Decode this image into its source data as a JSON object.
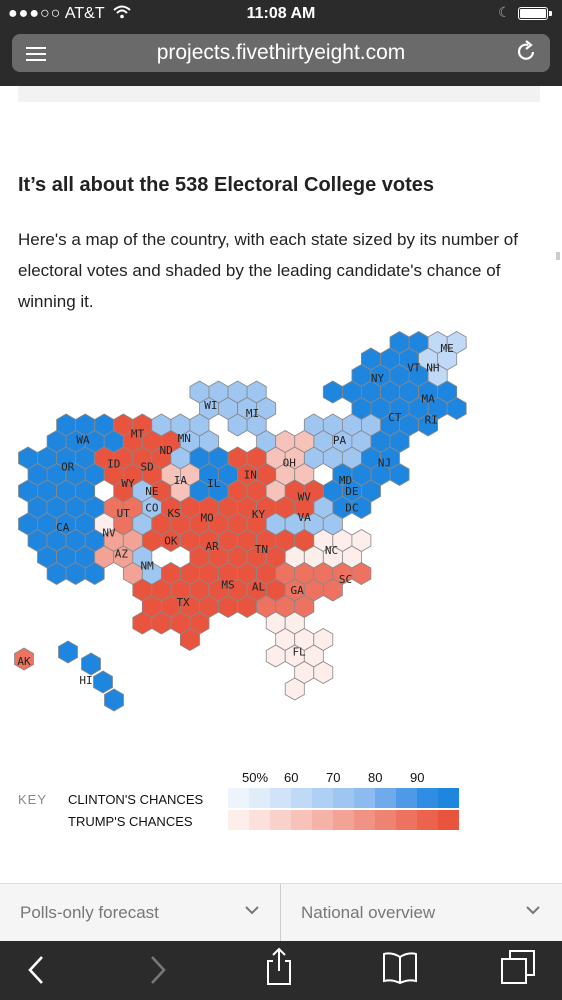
{
  "status_bar": {
    "carrier": "AT&T",
    "signal_dots": "●●●○○",
    "time": "11:08 AM"
  },
  "browser": {
    "url": "projects.fivethirtyeight.com"
  },
  "article": {
    "heading": "It’s all about the 538 Electoral College votes",
    "intro": "Here's a map of the country, with each state sized by its number of electoral votes and shaded by the leading candidate's chance of winning it."
  },
  "map": {
    "states": [
      {
        "abbr": "ME",
        "leader": "clinton",
        "chance_band": "60"
      },
      {
        "abbr": "VT",
        "leader": "clinton",
        "chance_band": "90"
      },
      {
        "abbr": "NH",
        "leader": "clinton",
        "chance_band": "60"
      },
      {
        "abbr": "NY",
        "leader": "clinton",
        "chance_band": "90"
      },
      {
        "abbr": "MA",
        "leader": "clinton",
        "chance_band": "90"
      },
      {
        "abbr": "CT",
        "leader": "clinton",
        "chance_band": "90"
      },
      {
        "abbr": "RI",
        "leader": "clinton",
        "chance_band": "90"
      },
      {
        "abbr": "PA",
        "leader": "clinton",
        "chance_band": "70"
      },
      {
        "abbr": "NJ",
        "leader": "clinton",
        "chance_band": "90"
      },
      {
        "abbr": "MD",
        "leader": "clinton",
        "chance_band": "90"
      },
      {
        "abbr": "DE",
        "leader": "clinton",
        "chance_band": "90"
      },
      {
        "abbr": "DC",
        "leader": "clinton",
        "chance_band": "90"
      },
      {
        "abbr": "VA",
        "leader": "clinton",
        "chance_band": "70"
      },
      {
        "abbr": "WA",
        "leader": "clinton",
        "chance_band": "90"
      },
      {
        "abbr": "OR",
        "leader": "clinton",
        "chance_band": "90"
      },
      {
        "abbr": "CA",
        "leader": "clinton",
        "chance_band": "90"
      },
      {
        "abbr": "MT",
        "leader": "trump",
        "chance_band": "90"
      },
      {
        "abbr": "ND",
        "leader": "trump",
        "chance_band": "90"
      },
      {
        "abbr": "ID",
        "leader": "trump",
        "chance_band": "90"
      },
      {
        "abbr": "SD",
        "leader": "trump",
        "chance_band": "90"
      },
      {
        "abbr": "WY",
        "leader": "trump",
        "chance_band": "90"
      },
      {
        "abbr": "NE",
        "leader": "trump",
        "chance_band": "90"
      },
      {
        "abbr": "MN",
        "leader": "clinton",
        "chance_band": "70"
      },
      {
        "abbr": "WI",
        "leader": "clinton",
        "chance_band": "70"
      },
      {
        "abbr": "MI",
        "leader": "clinton",
        "chance_band": "70"
      },
      {
        "abbr": "IA",
        "leader": "trump",
        "chance_band": "60"
      },
      {
        "abbr": "IL",
        "leader": "clinton",
        "chance_band": "90"
      },
      {
        "abbr": "IN",
        "leader": "trump",
        "chance_band": "90"
      },
      {
        "abbr": "OH",
        "leader": "trump",
        "chance_band": "60"
      },
      {
        "abbr": "WV",
        "leader": "trump",
        "chance_band": "90"
      },
      {
        "abbr": "UT",
        "leader": "trump",
        "chance_band": "80"
      },
      {
        "abbr": "NV",
        "leader": "trump",
        "chance_band": "50"
      },
      {
        "abbr": "CO",
        "leader": "clinton",
        "chance_band": "70"
      },
      {
        "abbr": "KS",
        "leader": "trump",
        "chance_band": "90"
      },
      {
        "abbr": "MO",
        "leader": "trump",
        "chance_band": "90"
      },
      {
        "abbr": "KY",
        "leader": "trump",
        "chance_band": "90"
      },
      {
        "abbr": "OK",
        "leader": "trump",
        "chance_band": "90"
      },
      {
        "abbr": "AZ",
        "leader": "trump",
        "chance_band": "70"
      },
      {
        "abbr": "NM",
        "leader": "clinton",
        "chance_band": "70"
      },
      {
        "abbr": "AR",
        "leader": "trump",
        "chance_band": "90"
      },
      {
        "abbr": "TN",
        "leader": "trump",
        "chance_band": "90"
      },
      {
        "abbr": "NC",
        "leader": "trump",
        "chance_band": "50"
      },
      {
        "abbr": "TX",
        "leader": "trump",
        "chance_band": "90"
      },
      {
        "abbr": "MS",
        "leader": "trump",
        "chance_band": "90"
      },
      {
        "abbr": "AL",
        "leader": "trump",
        "chance_band": "90"
      },
      {
        "abbr": "GA",
        "leader": "trump",
        "chance_band": "80"
      },
      {
        "abbr": "SC",
        "leader": "trump",
        "chance_band": "80"
      },
      {
        "abbr": "FL",
        "leader": "trump",
        "chance_band": "50"
      },
      {
        "abbr": "AK",
        "leader": "trump",
        "chance_band": "80"
      },
      {
        "abbr": "HI",
        "leader": "clinton",
        "chance_band": "90"
      }
    ]
  },
  "key": {
    "label": "KEY",
    "clinton_label": "CLINTON'S CHANCES",
    "trump_label": "TRUMP'S CHANCES",
    "scale_labels": [
      "50%",
      "60",
      "70",
      "80",
      "90"
    ],
    "clinton_colors": [
      "#eef4fc",
      "#e0ecfa",
      "#d0e3f8",
      "#c0d9f6",
      "#b0cff4",
      "#9fc5f1",
      "#8dbbef",
      "#6fabeb",
      "#4e9ae6",
      "#2f8ee3",
      "#1f86e0"
    ],
    "trump_colors": [
      "#fdeeec",
      "#fbe0dc",
      "#f9d1cb",
      "#f7c2ba",
      "#f5b3a8",
      "#f3a396",
      "#f19384",
      "#ef8372",
      "#ed7360",
      "#eb634f",
      "#e9543f"
    ]
  },
  "bottom_nav": {
    "left": "Polls-only forecast",
    "right": "National overview"
  },
  "colors": {
    "dem_strong": "#3a97e4",
    "dem_light": "#a6c9ee",
    "gop_strong": "#ef6652",
    "gop_mid": "#f2a597",
    "gop_light": "#fbe2dd"
  }
}
